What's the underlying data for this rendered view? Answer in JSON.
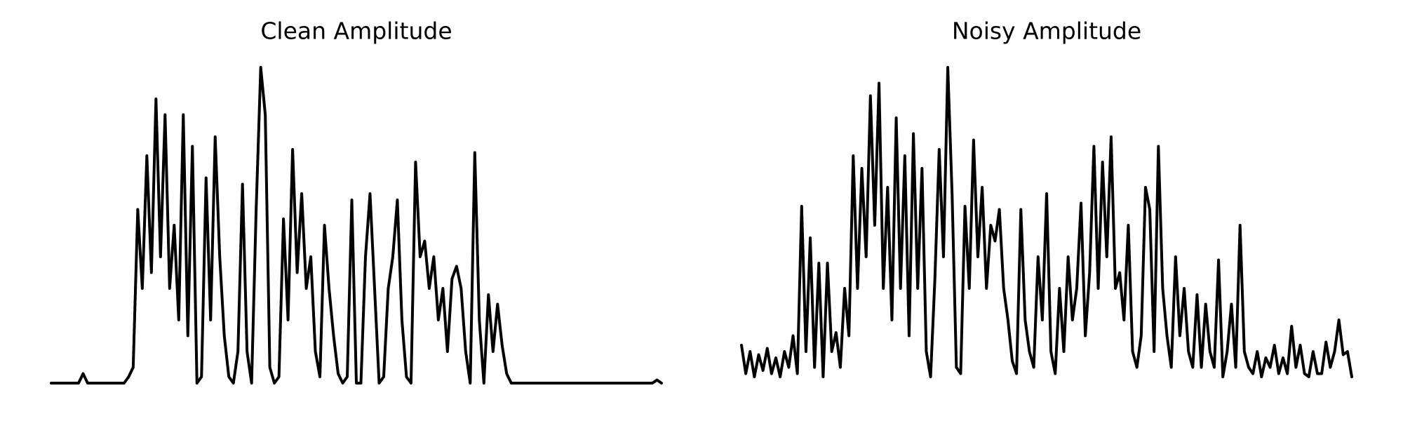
{
  "chart_data": [
    {
      "type": "line",
      "title": "Clean Amplitude",
      "color": "#000000",
      "ylim": [
        0,
        1
      ],
      "values": [
        0,
        0,
        0,
        0,
        0,
        0,
        0,
        0.03,
        0,
        0,
        0,
        0,
        0,
        0,
        0,
        0,
        0,
        0.02,
        0.05,
        0.55,
        0.3,
        0.72,
        0.35,
        0.9,
        0.4,
        0.85,
        0.3,
        0.5,
        0.2,
        0.85,
        0.15,
        0.75,
        0,
        0.02,
        0.65,
        0.2,
        0.78,
        0.4,
        0.15,
        0.02,
        0,
        0.1,
        0.63,
        0.1,
        0,
        0.55,
        1.0,
        0.85,
        0.05,
        0,
        0.02,
        0.52,
        0.2,
        0.74,
        0.35,
        0.6,
        0.3,
        0.4,
        0.1,
        0.02,
        0.5,
        0.3,
        0.15,
        0.03,
        0,
        0.02,
        0.58,
        0,
        0,
        0.4,
        0.6,
        0.3,
        0,
        0.02,
        0.3,
        0.4,
        0.58,
        0.2,
        0.02,
        0,
        0.7,
        0.4,
        0.45,
        0.3,
        0.4,
        0.2,
        0.3,
        0.1,
        0.33,
        0.37,
        0.3,
        0.1,
        0,
        0.73,
        0.2,
        0,
        0.28,
        0.1,
        0.25,
        0.12,
        0.03,
        0,
        0,
        0,
        0,
        0,
        0,
        0,
        0,
        0,
        0,
        0,
        0,
        0,
        0,
        0,
        0,
        0,
        0,
        0,
        0,
        0,
        0,
        0,
        0,
        0,
        0,
        0,
        0,
        0,
        0,
        0,
        0,
        0.01,
        0
      ]
    },
    {
      "type": "line",
      "title": "Noisy Amplitude",
      "color": "#000000",
      "ylim": [
        0,
        1
      ],
      "values": [
        0.12,
        0.03,
        0.1,
        0.02,
        0.09,
        0.04,
        0.11,
        0.03,
        0.08,
        0.02,
        0.1,
        0.05,
        0.15,
        0.03,
        0.56,
        0.1,
        0.46,
        0.05,
        0.38,
        0.02,
        0.38,
        0.1,
        0.16,
        0.05,
        0.3,
        0.15,
        0.72,
        0.3,
        0.68,
        0.4,
        0.91,
        0.5,
        0.95,
        0.3,
        0.62,
        0.2,
        0.84,
        0.3,
        0.72,
        0.15,
        0.79,
        0.3,
        0.68,
        0.1,
        0.02,
        0.33,
        0.74,
        0.4,
        1.0,
        0.6,
        0.05,
        0.03,
        0.56,
        0.3,
        0.77,
        0.4,
        0.62,
        0.3,
        0.5,
        0.45,
        0.55,
        0.3,
        0.2,
        0.07,
        0.03,
        0.55,
        0.2,
        0.1,
        0.05,
        0.4,
        0.2,
        0.6,
        0.1,
        0.03,
        0.3,
        0.1,
        0.4,
        0.2,
        0.3,
        0.57,
        0.15,
        0.35,
        0.75,
        0.3,
        0.7,
        0.4,
        0.78,
        0.3,
        0.35,
        0.2,
        0.5,
        0.1,
        0.05,
        0.15,
        0.62,
        0.55,
        0.1,
        0.75,
        0.3,
        0.15,
        0.05,
        0.4,
        0.15,
        0.3,
        0.1,
        0.05,
        0.28,
        0.05,
        0.25,
        0.1,
        0.05,
        0.39,
        0.02,
        0.1,
        0.25,
        0.05,
        0.5,
        0.1,
        0.05,
        0.03,
        0.1,
        0.02,
        0.08,
        0.05,
        0.12,
        0.03,
        0.08,
        0.03,
        0.18,
        0.05,
        0.12,
        0.03,
        0.02,
        0.1,
        0.03,
        0.03,
        0.13,
        0.05,
        0.1,
        0.2,
        0.09,
        0.1,
        0.02
      ]
    }
  ]
}
